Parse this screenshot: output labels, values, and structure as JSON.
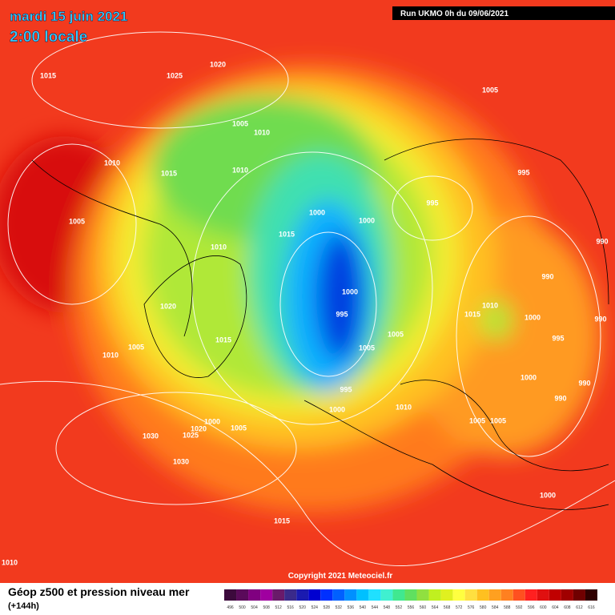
{
  "header": {
    "date": "mardi 15 juin 2021",
    "time": "2:00 locale",
    "run": "Run UKMO 0h du 09/06/2021"
  },
  "footer": {
    "copyright": "Copyright 2021 Meteociel.fr",
    "caption": "Géop z500 et pression niveau mer",
    "lead": "(+144h)"
  },
  "legend": {
    "labels": [
      496,
      500,
      504,
      508,
      512,
      516,
      520,
      524,
      528,
      532,
      536,
      540,
      544,
      548,
      552,
      556,
      560,
      564,
      568,
      572,
      576,
      580,
      584,
      588,
      592,
      596,
      600,
      604,
      608,
      612,
      616
    ],
    "colors": [
      "#3c0a3c",
      "#5a0a5a",
      "#800080",
      "#a000a0",
      "#6a1a6a",
      "#3a2a8a",
      "#1a1ab0",
      "#0000d0",
      "#0030ff",
      "#0060ff",
      "#0090ff",
      "#00c0ff",
      "#20e0ff",
      "#40f0d0",
      "#40e890",
      "#60e060",
      "#90e040",
      "#c0f020",
      "#e0f020",
      "#ffff40",
      "#ffe040",
      "#ffc020",
      "#ffa020",
      "#ff8020",
      "#ff5020",
      "#ff2020",
      "#e01010",
      "#c00000",
      "#a00000",
      "#700000",
      "#300000"
    ]
  },
  "isobar_labels": [
    1015,
    1025,
    1020,
    1005,
    1010,
    1005,
    1010,
    1015,
    1010,
    995,
    1005,
    1000,
    1000,
    995,
    1015,
    1010,
    990,
    990,
    1000,
    1020,
    995,
    1010,
    1015,
    1000,
    990,
    1015,
    1005,
    1005,
    1010,
    1005,
    995,
    1000,
    995,
    990,
    990,
    1000,
    1010,
    1000,
    1020,
    1005,
    1005,
    1005,
    1030,
    1025,
    1030,
    1000,
    1015,
    1010
  ]
}
